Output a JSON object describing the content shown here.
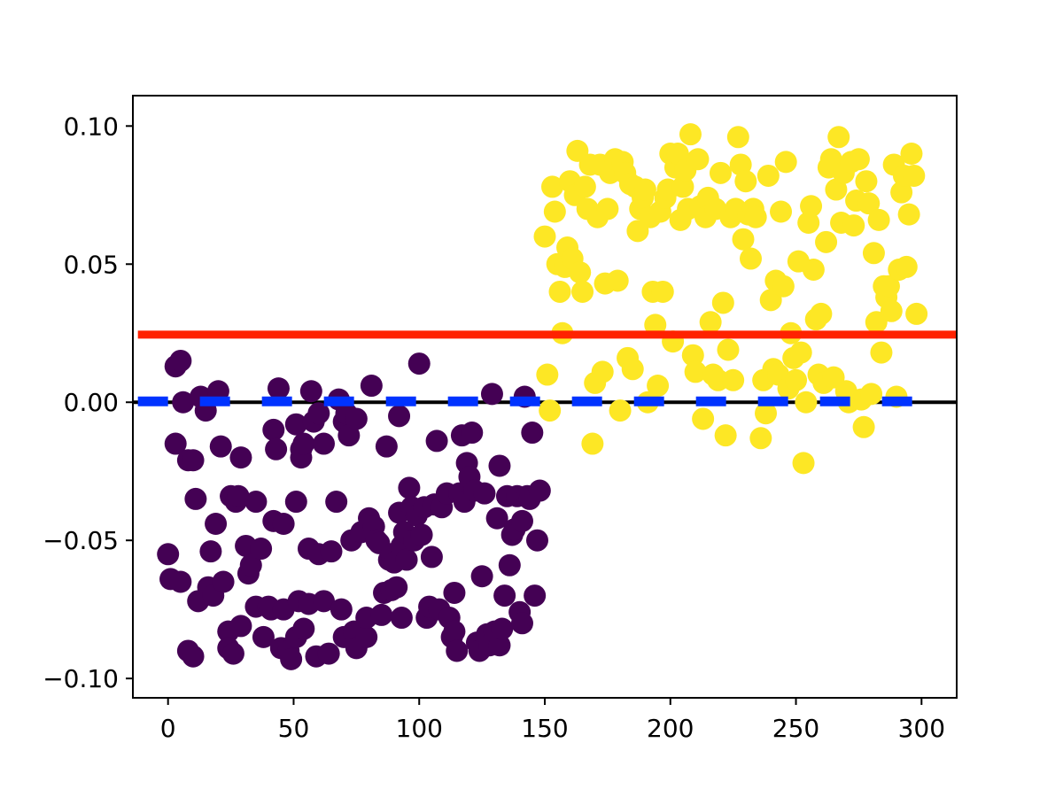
{
  "colors": {
    "group_low": "#440154",
    "group_high": "#fde725",
    "red_line": "#ff2200",
    "blue_dashed": "#0033ff",
    "zero_line": "#000000"
  },
  "chart_data": {
    "type": "scatter",
    "title": "",
    "xlabel": "",
    "ylabel": "",
    "xlim": [
      -14,
      314
    ],
    "ylim": [
      -0.107,
      0.111
    ],
    "grid": false,
    "x_ticks": [
      0,
      50,
      100,
      150,
      200,
      250,
      300
    ],
    "x_tick_labels": [
      "0",
      "50",
      "100",
      "150",
      "200",
      "250",
      "300"
    ],
    "y_ticks": [
      -0.1,
      -0.05,
      0.0,
      0.05,
      0.1
    ],
    "y_tick_labels": [
      "−0.10",
      "−0.05",
      "0.00",
      "0.05",
      "0.10"
    ],
    "reference_lines": [
      {
        "style": "solid",
        "color_key": "zero_line",
        "y": 0.0,
        "x_start": -14,
        "x_end": 314
      },
      {
        "style": "solid",
        "color_key": "red_line",
        "y": 0.0245,
        "x_start": -12,
        "x_end": 314
      },
      {
        "style": "dashed",
        "color_key": "blue_dashed",
        "y": 0.0003,
        "x_start": -12,
        "x_end": 300
      }
    ],
    "series": [
      {
        "color_key": "group_low",
        "points": [
          [
            0,
            -0.055
          ],
          [
            1,
            -0.064
          ],
          [
            3,
            0.013
          ],
          [
            3,
            -0.015
          ],
          [
            5,
            -0.065
          ],
          [
            5,
            0.015
          ],
          [
            6,
            0.0
          ],
          [
            8,
            -0.021
          ],
          [
            8,
            -0.09
          ],
          [
            10,
            -0.021
          ],
          [
            10,
            -0.092
          ],
          [
            11,
            -0.035
          ],
          [
            12,
            -0.072
          ],
          [
            13,
            0.002
          ],
          [
            15,
            -0.003
          ],
          [
            16,
            -0.067
          ],
          [
            17,
            -0.054
          ],
          [
            18,
            -0.07
          ],
          [
            19,
            -0.044
          ],
          [
            20,
            0.004
          ],
          [
            21,
            -0.016
          ],
          [
            22,
            -0.065
          ],
          [
            24,
            -0.083
          ],
          [
            24,
            -0.089
          ],
          [
            25,
            -0.034
          ],
          [
            26,
            -0.091
          ],
          [
            27,
            -0.036
          ],
          [
            28,
            -0.034
          ],
          [
            29,
            -0.02
          ],
          [
            29,
            -0.081
          ],
          [
            31,
            -0.052
          ],
          [
            32,
            -0.062
          ],
          [
            33,
            -0.059
          ],
          [
            35,
            -0.036
          ],
          [
            35,
            -0.074
          ],
          [
            37,
            -0.053
          ],
          [
            38,
            -0.085
          ],
          [
            40,
            -0.074
          ],
          [
            41,
            -0.075
          ],
          [
            42,
            -0.043
          ],
          [
            42,
            -0.01
          ],
          [
            43,
            -0.017
          ],
          [
            44,
            0.005
          ],
          [
            45,
            -0.089
          ],
          [
            46,
            -0.075
          ],
          [
            46,
            -0.044
          ],
          [
            48,
            -0.09
          ],
          [
            49,
            -0.093
          ],
          [
            51,
            -0.008
          ],
          [
            51,
            -0.085
          ],
          [
            51,
            -0.036
          ],
          [
            52,
            -0.072
          ],
          [
            53,
            -0.017
          ],
          [
            53,
            -0.02
          ],
          [
            54,
            -0.082
          ],
          [
            54,
            -0.015
          ],
          [
            56,
            -0.073
          ],
          [
            56,
            -0.053
          ],
          [
            57,
            0.004
          ],
          [
            58,
            -0.007
          ],
          [
            59,
            -0.092
          ],
          [
            60,
            -0.055
          ],
          [
            60,
            -0.004
          ],
          [
            62,
            -0.015
          ],
          [
            62,
            -0.072
          ],
          [
            64,
            -0.091
          ],
          [
            65,
            -0.054
          ],
          [
            67,
            -0.036
          ],
          [
            68,
            0.001
          ],
          [
            69,
            -0.075
          ],
          [
            70,
            -0.085
          ],
          [
            70,
            -0.007
          ],
          [
            71,
            -0.004
          ],
          [
            72,
            -0.012
          ],
          [
            73,
            -0.05
          ],
          [
            74,
            -0.083
          ],
          [
            75,
            -0.089
          ],
          [
            75,
            -0.006
          ],
          [
            77,
            -0.047
          ],
          [
            79,
            -0.085
          ],
          [
            79,
            -0.078
          ],
          [
            80,
            -0.042
          ],
          [
            81,
            0.006
          ],
          [
            82,
            -0.045
          ],
          [
            83,
            -0.05
          ],
          [
            84,
            -0.051
          ],
          [
            85,
            -0.077
          ],
          [
            86,
            -0.069
          ],
          [
            87,
            -0.016
          ],
          [
            88,
            -0.057
          ],
          [
            89,
            -0.055
          ],
          [
            89,
            -0.068
          ],
          [
            90,
            -0.058
          ],
          [
            91,
            -0.067
          ],
          [
            92,
            -0.005
          ],
          [
            92,
            -0.04
          ],
          [
            93,
            -0.052
          ],
          [
            93,
            -0.078
          ],
          [
            94,
            -0.047
          ],
          [
            95,
            -0.057
          ],
          [
            96,
            -0.031
          ],
          [
            97,
            -0.038
          ],
          [
            98,
            -0.05
          ],
          [
            99,
            -0.041
          ],
          [
            100,
            0.014
          ],
          [
            101,
            -0.048
          ],
          [
            102,
            -0.038
          ],
          [
            103,
            -0.078
          ],
          [
            104,
            -0.074
          ],
          [
            105,
            -0.056
          ],
          [
            106,
            -0.037
          ],
          [
            107,
            -0.014
          ],
          [
            108,
            -0.075
          ],
          [
            109,
            -0.038
          ],
          [
            111,
            -0.033
          ],
          [
            112,
            -0.078
          ],
          [
            113,
            -0.085
          ],
          [
            114,
            -0.083
          ],
          [
            114,
            -0.069
          ],
          [
            115,
            -0.09
          ],
          [
            116,
            -0.033
          ],
          [
            117,
            -0.012
          ],
          [
            118,
            -0.036
          ],
          [
            119,
            -0.022
          ],
          [
            120,
            -0.027
          ],
          [
            121,
            -0.011
          ],
          [
            122,
            -0.032
          ],
          [
            123,
            -0.087
          ],
          [
            124,
            -0.09
          ],
          [
            125,
            -0.063
          ],
          [
            126,
            -0.033
          ],
          [
            127,
            -0.084
          ],
          [
            128,
            -0.088
          ],
          [
            129,
            0.003
          ],
          [
            130,
            -0.083
          ],
          [
            131,
            -0.042
          ],
          [
            132,
            -0.088
          ],
          [
            132,
            -0.023
          ],
          [
            133,
            -0.082
          ],
          [
            134,
            -0.07
          ],
          [
            135,
            -0.034
          ],
          [
            136,
            -0.059
          ],
          [
            137,
            -0.048
          ],
          [
            138,
            -0.046
          ],
          [
            139,
            -0.034
          ],
          [
            140,
            -0.076
          ],
          [
            141,
            -0.043
          ],
          [
            141,
            -0.08
          ],
          [
            142,
            0.002
          ],
          [
            143,
            -0.034
          ],
          [
            144,
            -0.035
          ],
          [
            145,
            -0.011
          ],
          [
            146,
            -0.07
          ],
          [
            147,
            -0.05
          ],
          [
            148,
            -0.032
          ]
        ]
      },
      {
        "color_key": "group_high",
        "points": [
          [
            150,
            0.06
          ],
          [
            151,
            0.01
          ],
          [
            152,
            -0.003
          ],
          [
            153,
            0.078
          ],
          [
            154,
            0.069
          ],
          [
            155,
            0.05
          ],
          [
            156,
            0.04
          ],
          [
            157,
            0.025
          ],
          [
            158,
            0.049
          ],
          [
            159,
            0.056
          ],
          [
            160,
            0.08
          ],
          [
            161,
            0.052
          ],
          [
            162,
            0.075
          ],
          [
            163,
            0.091
          ],
          [
            164,
            0.047
          ],
          [
            165,
            0.04
          ],
          [
            166,
            0.078
          ],
          [
            167,
            0.07
          ],
          [
            168,
            0.086
          ],
          [
            169,
            -0.015
          ],
          [
            170,
            0.007
          ],
          [
            171,
            0.067
          ],
          [
            172,
            0.086
          ],
          [
            173,
            0.011
          ],
          [
            174,
            0.043
          ],
          [
            175,
            0.07
          ],
          [
            176,
            0.083
          ],
          [
            178,
            0.088
          ],
          [
            179,
            0.044
          ],
          [
            180,
            -0.003
          ],
          [
            181,
            0.087
          ],
          [
            182,
            0.083
          ],
          [
            183,
            0.016
          ],
          [
            184,
            0.079
          ],
          [
            185,
            0.012
          ],
          [
            186,
            0.078
          ],
          [
            187,
            0.062
          ],
          [
            188,
            0.07
          ],
          [
            189,
            0.074
          ],
          [
            190,
            0.077
          ],
          [
            191,
            0.0
          ],
          [
            192,
            0.067
          ],
          [
            193,
            0.04
          ],
          [
            194,
            0.028
          ],
          [
            195,
            0.006
          ],
          [
            196,
            0.069
          ],
          [
            197,
            0.04
          ],
          [
            198,
            0.074
          ],
          [
            199,
            0.077
          ],
          [
            200,
            0.09
          ],
          [
            201,
            0.022
          ],
          [
            202,
            0.085
          ],
          [
            203,
            0.09
          ],
          [
            204,
            0.066
          ],
          [
            205,
            0.078
          ],
          [
            206,
            0.084
          ],
          [
            207,
            0.07
          ],
          [
            208,
            0.097
          ],
          [
            209,
            0.017
          ],
          [
            210,
            0.011
          ],
          [
            211,
            0.088
          ],
          [
            212,
            0.071
          ],
          [
            213,
            -0.006
          ],
          [
            214,
            0.067
          ],
          [
            215,
            0.074
          ],
          [
            216,
            0.029
          ],
          [
            217,
            0.01
          ],
          [
            218,
            0.07
          ],
          [
            219,
            0.008
          ],
          [
            220,
            0.083
          ],
          [
            221,
            0.036
          ],
          [
            222,
            -0.012
          ],
          [
            223,
            0.019
          ],
          [
            224,
            0.067
          ],
          [
            225,
            0.008
          ],
          [
            226,
            0.07
          ],
          [
            227,
            0.096
          ],
          [
            228,
            0.086
          ],
          [
            229,
            0.059
          ],
          [
            230,
            0.08
          ],
          [
            231,
            0.068
          ],
          [
            232,
            0.052
          ],
          [
            233,
            0.07
          ],
          [
            234,
            0.067
          ],
          [
            236,
            -0.013
          ],
          [
            237,
            0.008
          ],
          [
            238,
            -0.004
          ],
          [
            239,
            0.082
          ],
          [
            240,
            0.037
          ],
          [
            241,
            0.012
          ],
          [
            242,
            0.044
          ],
          [
            243,
            0.01
          ],
          [
            244,
            0.069
          ],
          [
            245,
            0.042
          ],
          [
            246,
            0.087
          ],
          [
            247,
            0.005
          ],
          [
            248,
            0.025
          ],
          [
            249,
            0.016
          ],
          [
            250,
            0.008
          ],
          [
            251,
            0.051
          ],
          [
            252,
            0.018
          ],
          [
            253,
            -0.022
          ],
          [
            254,
            0.0
          ],
          [
            255,
            0.065
          ],
          [
            256,
            0.071
          ],
          [
            257,
            0.048
          ],
          [
            258,
            0.03
          ],
          [
            259,
            0.01
          ],
          [
            260,
            0.032
          ],
          [
            261,
            0.007
          ],
          [
            262,
            0.058
          ],
          [
            263,
            0.085
          ],
          [
            264,
            0.088
          ],
          [
            265,
            0.009
          ],
          [
            266,
            0.077
          ],
          [
            267,
            0.096
          ],
          [
            268,
            0.065
          ],
          [
            269,
            0.083
          ],
          [
            270,
            0.004
          ],
          [
            271,
            0.0
          ],
          [
            272,
            0.087
          ],
          [
            273,
            0.064
          ],
          [
            274,
            0.073
          ],
          [
            275,
            0.088
          ],
          [
            276,
            0.001
          ],
          [
            277,
            -0.009
          ],
          [
            278,
            0.08
          ],
          [
            279,
            0.072
          ],
          [
            280,
            0.003
          ],
          [
            281,
            0.054
          ],
          [
            282,
            0.029
          ],
          [
            283,
            0.066
          ],
          [
            284,
            0.018
          ],
          [
            285,
            0.042
          ],
          [
            286,
            0.038
          ],
          [
            287,
            0.042
          ],
          [
            288,
            0.033
          ],
          [
            289,
            0.086
          ],
          [
            290,
            0.002
          ],
          [
            291,
            0.048
          ],
          [
            292,
            0.076
          ],
          [
            293,
            0.082
          ],
          [
            294,
            0.049
          ],
          [
            295,
            0.068
          ],
          [
            296,
            0.09
          ],
          [
            297,
            0.082
          ],
          [
            298,
            0.032
          ]
        ]
      }
    ]
  }
}
